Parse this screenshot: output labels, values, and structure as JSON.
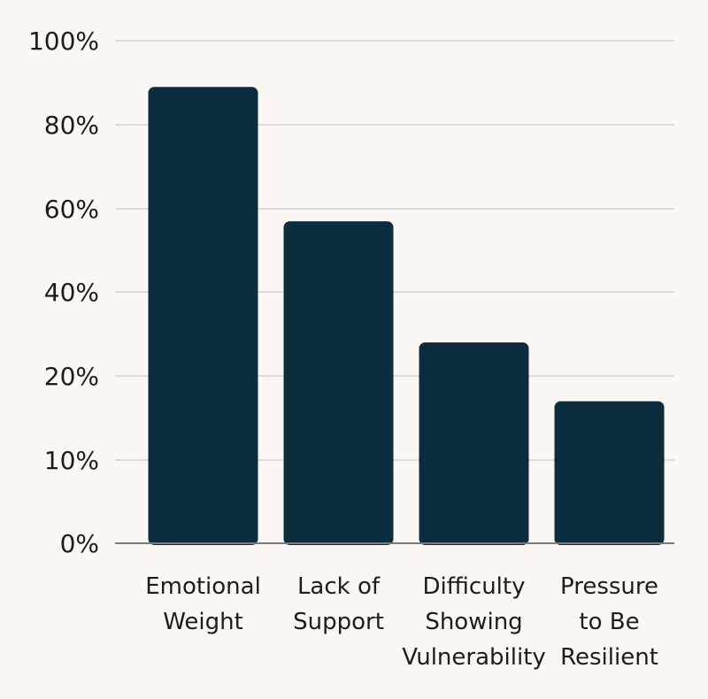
{
  "chart_data": {
    "type": "bar",
    "categories": [
      [
        "Emotional",
        "Weight"
      ],
      [
        "Lack of",
        "Support"
      ],
      [
        "Difficulty",
        "Showing",
        "Vulnerability"
      ],
      [
        "Pressure",
        "to Be",
        "Resilient"
      ]
    ],
    "values": [
      89,
      57,
      28,
      17
    ],
    "y_ticks": [
      "0%",
      "10%",
      "20%",
      "40%",
      "60%",
      "80%",
      "100%"
    ],
    "grid": true,
    "bar_color": "#0c2d3e",
    "grid_color": "#d6d3cf",
    "axis_color": "#7a7a7a",
    "background": "#faf7f4"
  }
}
